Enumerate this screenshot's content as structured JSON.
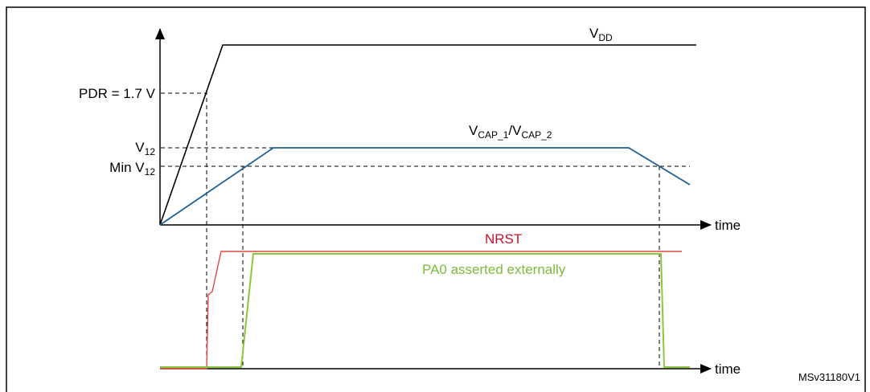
{
  "labels": {
    "vdd": {
      "main": "V",
      "sub": "DD"
    },
    "pdr": "PDR = 1.7 V",
    "v12": {
      "main": "V",
      "sub": "12"
    },
    "min_v12": {
      "main": "Min V",
      "sub": "12"
    },
    "vcap": {
      "main1": "V",
      "sub1": "CAP_1",
      "main2": "/V",
      "sub2": "CAP_2"
    },
    "time_1": "time",
    "nrst": "NRST",
    "pa0": "PA0 asserted externally",
    "time_2": "time",
    "figure_id": "MSv31180V1"
  }
}
